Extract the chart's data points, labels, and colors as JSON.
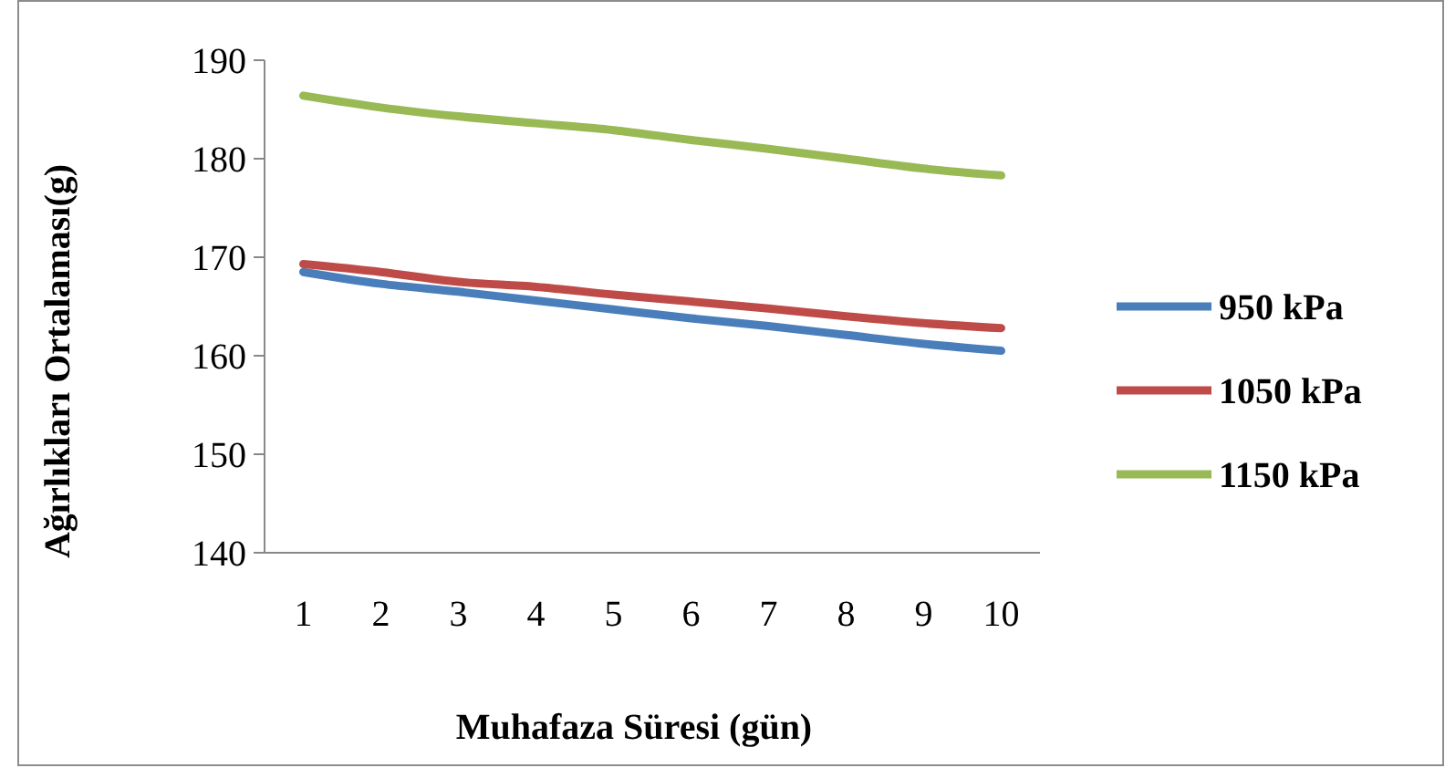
{
  "chart_data": {
    "type": "line",
    "xlabel": "Muhafaza Süresi (gün)",
    "ylabel": "Ağırlıkları Ortalaması(g)",
    "categories": [
      "1",
      "2",
      "3",
      "4",
      "5",
      "6",
      "7",
      "8",
      "9",
      "10"
    ],
    "ylim": [
      140,
      190
    ],
    "yticks": [
      140,
      150,
      160,
      170,
      180,
      190
    ],
    "grid": false,
    "legend": "right",
    "marker": "none",
    "line_style": "solid",
    "series": [
      {
        "name": "950 kPa",
        "color": "#4a7ebb",
        "values": [
          168.5,
          167.3,
          166.5,
          165.6,
          164.7,
          163.8,
          163.0,
          162.1,
          161.2,
          160.5
        ]
      },
      {
        "name": "1050 kPa",
        "color": "#be4b48",
        "values": [
          169.3,
          168.5,
          167.5,
          167.0,
          166.2,
          165.5,
          164.8,
          164.0,
          163.3,
          162.8
        ]
      },
      {
        "name": "1150 kPa",
        "color": "#98b954",
        "values": [
          186.4,
          185.2,
          184.3,
          183.6,
          182.9,
          181.9,
          181.0,
          180.0,
          179.0,
          178.3
        ]
      }
    ]
  }
}
